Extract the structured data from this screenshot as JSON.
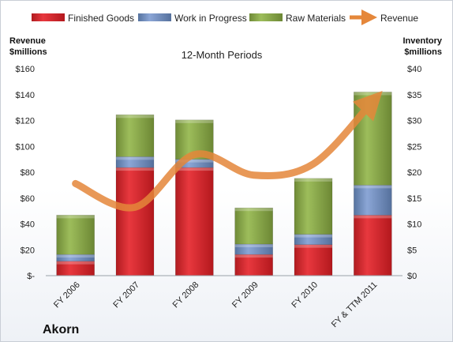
{
  "chart_data": {
    "type": "bar",
    "subtitle": "12-Month Periods",
    "company": "Akorn",
    "categories": [
      "FY 2006",
      "FY 2007",
      "FY 2008",
      "FY 2009",
      "FY 2010",
      "FY & TTM 2011"
    ],
    "stacked_series": [
      {
        "name": "Finished Goods",
        "color": "#d9252b",
        "values": [
          2.8,
          20.9,
          20.9,
          4.1,
          6.0,
          11.7
        ]
      },
      {
        "name": "Work in Progress",
        "color": "#6f8ec7",
        "values": [
          1.3,
          2.1,
          1.6,
          2.0,
          2.0,
          5.8
        ]
      },
      {
        "name": "Raw Materials",
        "color": "#8caa4a",
        "values": [
          7.6,
          8.1,
          7.6,
          7.0,
          10.8,
          18.0
        ]
      }
    ],
    "line_series": {
      "name": "Revenue",
      "color": "#e5873a",
      "values": [
        71.2,
        52.9,
        93.6,
        77.7,
        86.4,
        134.9
      ]
    },
    "y_left": {
      "label_line1": "Revenue",
      "label_line2": "$millions",
      "min": 0,
      "max": 160,
      "step": 20,
      "tick_labels": [
        "$-",
        "$20",
        "$40",
        "$60",
        "$80",
        "$100",
        "$120",
        "$140",
        "$160"
      ]
    },
    "y_right": {
      "label_line1": "Inventory",
      "label_line2": "$millions",
      "min": 0,
      "max": 40,
      "step": 5,
      "tick_labels": [
        "$0",
        "$5",
        "$10",
        "$15",
        "$20",
        "$25",
        "$30",
        "$35",
        "$40"
      ]
    },
    "legend": {
      "placement": "top",
      "items": [
        "Finished Goods",
        "Work in Progress",
        "Raw Materials",
        "Revenue"
      ]
    },
    "grid": false
  }
}
